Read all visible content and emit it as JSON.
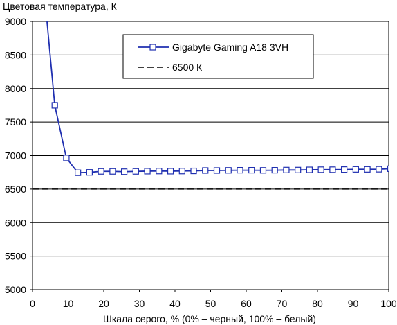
{
  "chart_data": {
    "type": "line",
    "ylabel": "Цветовая температура, К",
    "xlabel": "Шкала серого, % (0% – черный, 100% – белый)",
    "xlim": [
      0,
      100
    ],
    "ylim": [
      5000,
      9000
    ],
    "x_ticks": [
      0,
      10,
      20,
      30,
      40,
      50,
      60,
      70,
      80,
      90,
      100
    ],
    "y_ticks": [
      5000,
      5500,
      6000,
      6500,
      7000,
      7500,
      8000,
      8500,
      9000
    ],
    "grid": "horizontal",
    "legend_position": "top-center",
    "series": [
      {
        "name": "Gigabyte Gaming A18 3VH",
        "color": "#1f2fb0",
        "marker": "square",
        "style": "solid",
        "x": [
          6.25,
          9.5,
          12.75,
          16,
          19.25,
          22.5,
          25.75,
          29,
          32.25,
          35.5,
          38.75,
          42,
          45.25,
          48.5,
          51.75,
          55,
          58.25,
          61.5,
          64.75,
          68,
          71.25,
          74.5,
          77.75,
          81,
          84.25,
          87.5,
          90.75,
          94,
          97.25,
          100.5
        ],
        "y": [
          7750,
          6965,
          6745,
          6750,
          6765,
          6765,
          6760,
          6765,
          6768,
          6770,
          6768,
          6770,
          6772,
          6778,
          6778,
          6780,
          6782,
          6782,
          6780,
          6782,
          6785,
          6785,
          6788,
          6790,
          6790,
          6792,
          6795,
          6795,
          6797,
          6805
        ],
        "leading_line_from": [
          3.9,
          9100
        ]
      },
      {
        "name": "6500 К",
        "color": "#000000",
        "style": "dashed",
        "x": [
          0,
          100
        ],
        "y": [
          6500,
          6500
        ]
      }
    ]
  }
}
